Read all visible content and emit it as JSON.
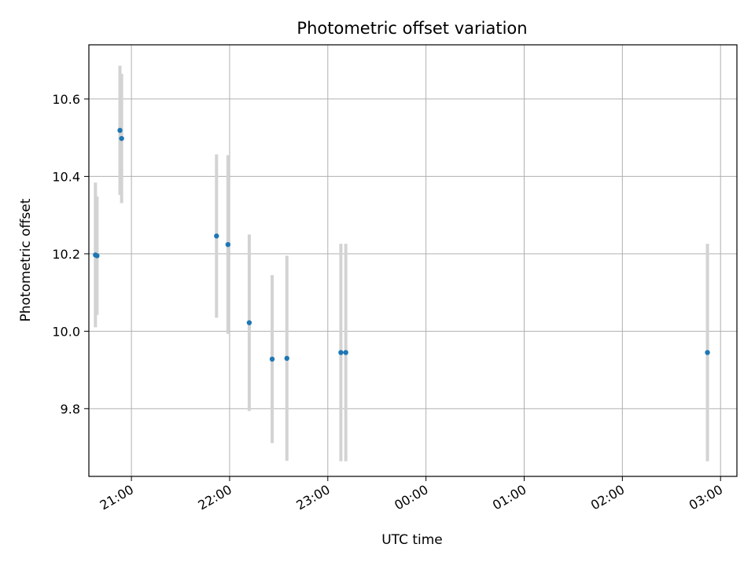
{
  "chart_data": {
    "type": "scatter",
    "title": "Photometric offset variation",
    "xlabel": "UTC time",
    "ylabel": "Photometric offset",
    "xlim": [
      "20:34",
      "03:10"
    ],
    "ylim": [
      9.625,
      10.74
    ],
    "grid": true,
    "x_tick_labels": [
      "21:00",
      "22:00",
      "23:00",
      "00:00",
      "01:00",
      "02:00",
      "03:00"
    ],
    "y_tick_labels": [
      "9.8",
      "10.0",
      "10.2",
      "10.4",
      "10.6"
    ],
    "marker_color": "#1f77b4",
    "errorbar_color": "#d3d3d3",
    "points": [
      {
        "x": "20:38",
        "y": 10.197,
        "err": 0.187
      },
      {
        "x": "20:39",
        "y": 10.195,
        "err": 0.153
      },
      {
        "x": "20:53",
        "y": 10.519,
        "err": 0.167
      },
      {
        "x": "20:54",
        "y": 10.498,
        "err": 0.167
      },
      {
        "x": "21:52",
        "y": 10.246,
        "err": 0.211
      },
      {
        "x": "21:59",
        "y": 10.224,
        "err": 0.231
      },
      {
        "x": "22:12",
        "y": 10.022,
        "err": 0.228
      },
      {
        "x": "22:26",
        "y": 9.928,
        "err": 0.217
      },
      {
        "x": "22:35",
        "y": 9.93,
        "err": 0.265
      },
      {
        "x": "23:08",
        "y": 9.945,
        "err": 0.281
      },
      {
        "x": "23:11",
        "y": 9.945,
        "err": 0.281
      },
      {
        "x": "02:52",
        "y": 9.945,
        "err": 0.281
      }
    ]
  }
}
